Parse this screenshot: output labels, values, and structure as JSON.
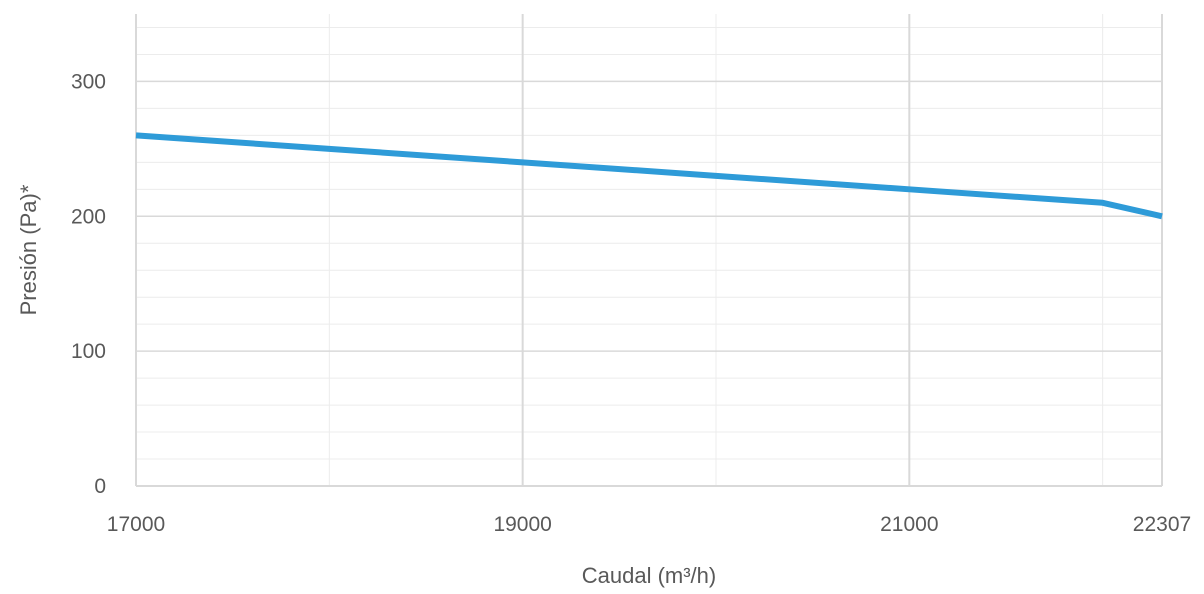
{
  "chart_data": {
    "type": "line",
    "title": "",
    "xlabel": "Caudal (m³/h)",
    "ylabel": "Presión (Pa)*",
    "xlim": [
      17000,
      22307
    ],
    "ylim": [
      0,
      350
    ],
    "x_ticks": [
      "17000",
      "19000",
      "21000",
      "22307"
    ],
    "y_ticks": [
      "0",
      "100",
      "200",
      "300"
    ],
    "grid": true,
    "legend": "none",
    "series": [
      {
        "x": [
          17000,
          18000,
          19000,
          20000,
          21000,
          22000,
          22307
        ],
        "y": [
          260,
          250,
          240,
          230,
          220,
          210,
          200
        ],
        "color": "#2e9bd8"
      }
    ],
    "colors": {
      "major_grid": "#d9d9d9",
      "minor_grid": "#ececec",
      "text": "#595959"
    }
  }
}
